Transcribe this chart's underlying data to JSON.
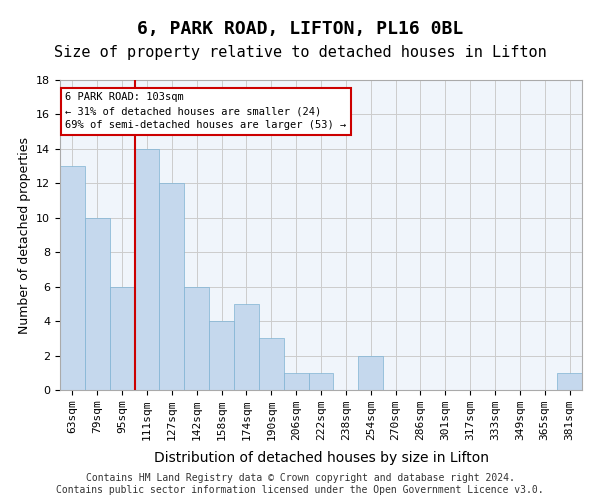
{
  "title": "6, PARK ROAD, LIFTON, PL16 0BL",
  "subtitle": "Size of property relative to detached houses in Lifton",
  "xlabel": "Distribution of detached houses by size in Lifton",
  "ylabel": "Number of detached properties",
  "categories": [
    "63sqm",
    "79sqm",
    "95sqm",
    "111sqm",
    "127sqm",
    "142sqm",
    "158sqm",
    "174sqm",
    "190sqm",
    "206sqm",
    "222sqm",
    "238sqm",
    "254sqm",
    "270sqm",
    "286sqm",
    "301sqm",
    "317sqm",
    "333sqm",
    "349sqm",
    "365sqm",
    "381sqm"
  ],
  "values": [
    13,
    10,
    6,
    14,
    12,
    6,
    4,
    5,
    3,
    1,
    1,
    0,
    2,
    0,
    0,
    0,
    0,
    0,
    0,
    0,
    1
  ],
  "bar_color": "#c5d8ed",
  "bar_edge_color": "#7fb3d3",
  "grid_color": "#cccccc",
  "bg_color": "#f0f5fb",
  "vline_x": 2.5,
  "vline_color": "#cc0000",
  "annotation_text": "6 PARK ROAD: 103sqm\n← 31% of detached houses are smaller (24)\n69% of semi-detached houses are larger (53) →",
  "annotation_box_color": "#cc0000",
  "ylim": [
    0,
    18
  ],
  "yticks": [
    0,
    2,
    4,
    6,
    8,
    10,
    12,
    14,
    16,
    18
  ],
  "footer": "Contains HM Land Registry data © Crown copyright and database right 2024.\nContains public sector information licensed under the Open Government Licence v3.0.",
  "title_fontsize": 13,
  "subtitle_fontsize": 11,
  "xlabel_fontsize": 10,
  "ylabel_fontsize": 9,
  "tick_fontsize": 8,
  "footer_fontsize": 7
}
